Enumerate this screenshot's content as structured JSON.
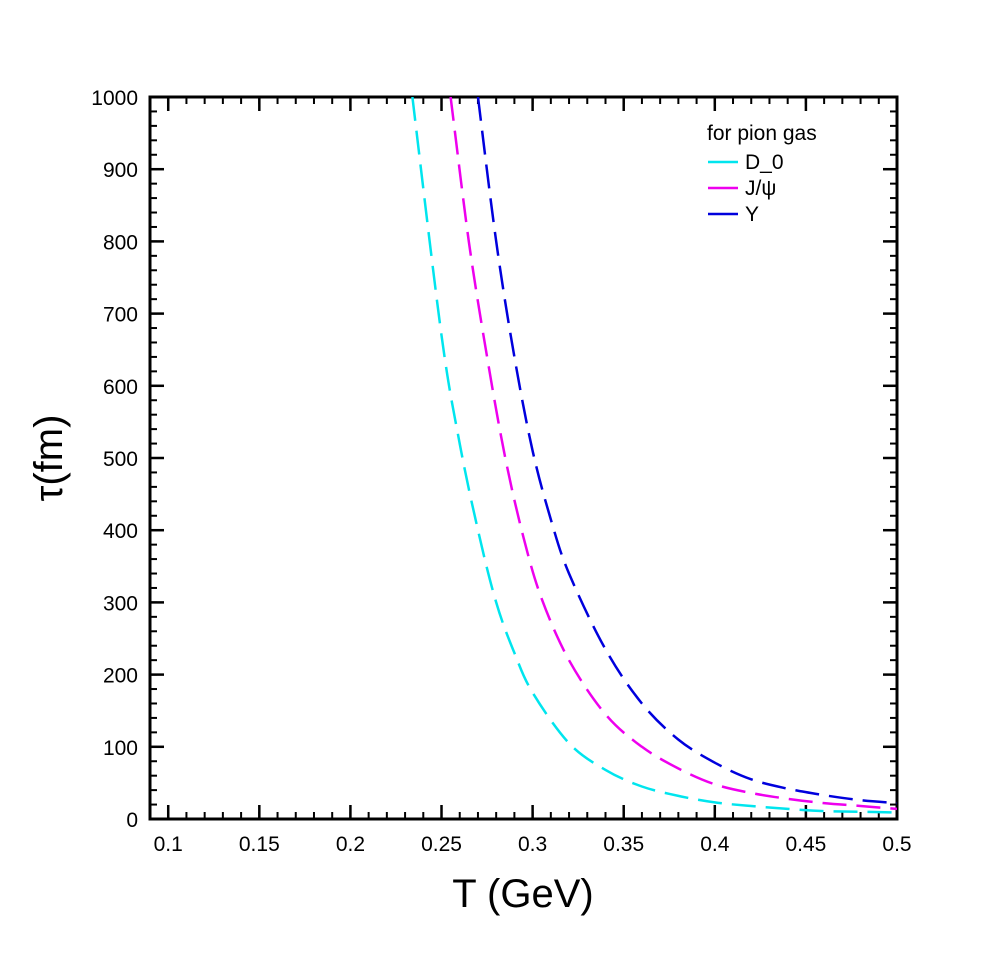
{
  "chart_data": {
    "type": "line",
    "title": "",
    "xlabel": "T (GeV)",
    "ylabel": "τ(fm)",
    "xlim": [
      0.09,
      0.5
    ],
    "ylim": [
      0,
      1000
    ],
    "x_ticks": [
      0.1,
      0.15,
      0.2,
      0.25,
      0.3,
      0.35,
      0.4,
      0.45,
      0.5
    ],
    "x_tick_labels": [
      "0.1",
      "0.15",
      "0.2",
      "0.25",
      "0.3",
      "0.35",
      "0.4",
      "0.45",
      "0.5"
    ],
    "y_ticks": [
      0,
      100,
      200,
      300,
      400,
      500,
      600,
      700,
      800,
      900,
      1000
    ],
    "y_tick_labels": [
      "0",
      "100",
      "200",
      "300",
      "400",
      "500",
      "600",
      "700",
      "800",
      "900",
      "1000"
    ],
    "grid": false,
    "legend": {
      "title": "for pion gas",
      "position": "top-right"
    },
    "series": [
      {
        "name": "D_0",
        "color": "#00e5ee",
        "style": "dashed",
        "x": [
          0.234,
          0.25,
          0.26,
          0.27,
          0.28,
          0.29,
          0.3,
          0.32,
          0.34,
          0.36,
          0.38,
          0.4,
          0.42,
          0.44,
          0.46,
          0.48,
          0.5
        ],
        "y": [
          1000,
          670,
          520,
          400,
          300,
          230,
          175,
          105,
          68,
          45,
          32,
          23,
          18,
          14,
          11,
          10,
          9
        ]
      },
      {
        "name": "J/ψ",
        "color": "#ee00ee",
        "style": "dashed",
        "x": [
          0.255,
          0.265,
          0.275,
          0.285,
          0.295,
          0.305,
          0.32,
          0.34,
          0.36,
          0.38,
          0.4,
          0.42,
          0.44,
          0.46,
          0.48,
          0.5
        ],
        "y": [
          1000,
          800,
          640,
          500,
          390,
          305,
          220,
          145,
          100,
          70,
          48,
          36,
          28,
          22,
          18,
          14
        ]
      },
      {
        "name": "Υ",
        "color": "#0000dd",
        "style": "dashed",
        "x": [
          0.27,
          0.28,
          0.29,
          0.3,
          0.31,
          0.32,
          0.34,
          0.36,
          0.38,
          0.4,
          0.42,
          0.44,
          0.46,
          0.48,
          0.5
        ],
        "y": [
          1000,
          800,
          640,
          510,
          415,
          340,
          235,
          160,
          110,
          78,
          55,
          42,
          33,
          26,
          22
        ]
      }
    ]
  }
}
